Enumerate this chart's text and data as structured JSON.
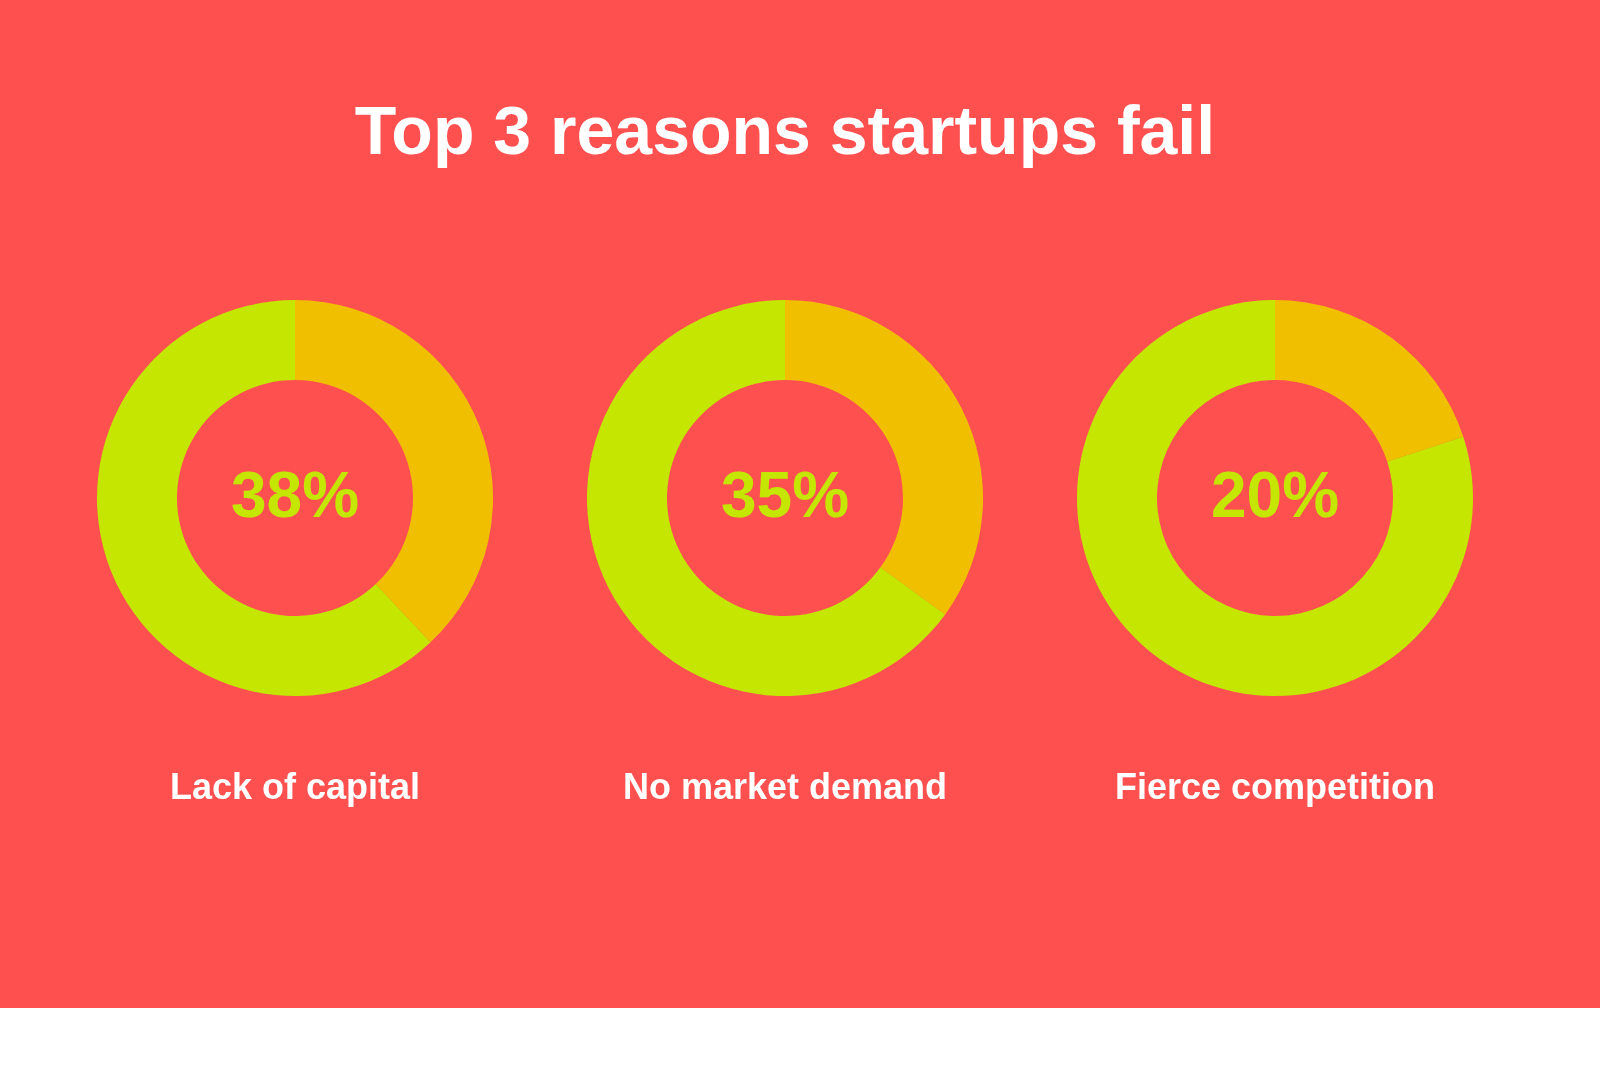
{
  "chart_data": [
    {
      "type": "donut",
      "title": "Top 3 reasons startups fail",
      "xlabel": "Lack of capital",
      "categories": [
        null,
        null
      ],
      "values": [
        38,
        62
      ],
      "colors": [
        "#f0c000",
        "#c4e600"
      ],
      "value_labels": [
        "38%",
        null
      ],
      "legend": false
    },
    {
      "type": "donut",
      "xlabel": "No market demand",
      "categories": [
        null,
        null
      ],
      "values": [
        35,
        65
      ],
      "colors": [
        "#f0c000",
        "#c4e600"
      ],
      "value_labels": [
        "35%",
        null
      ],
      "legend": false
    },
    {
      "type": "donut",
      "xlabel": "Fierce competition",
      "categories": [
        null,
        null
      ],
      "values": [
        20,
        80
      ],
      "colors": [
        "#f0c000",
        "#c4e600"
      ],
      "value_labels": [
        "20%",
        null
      ],
      "legend": false
    }
  ]
}
